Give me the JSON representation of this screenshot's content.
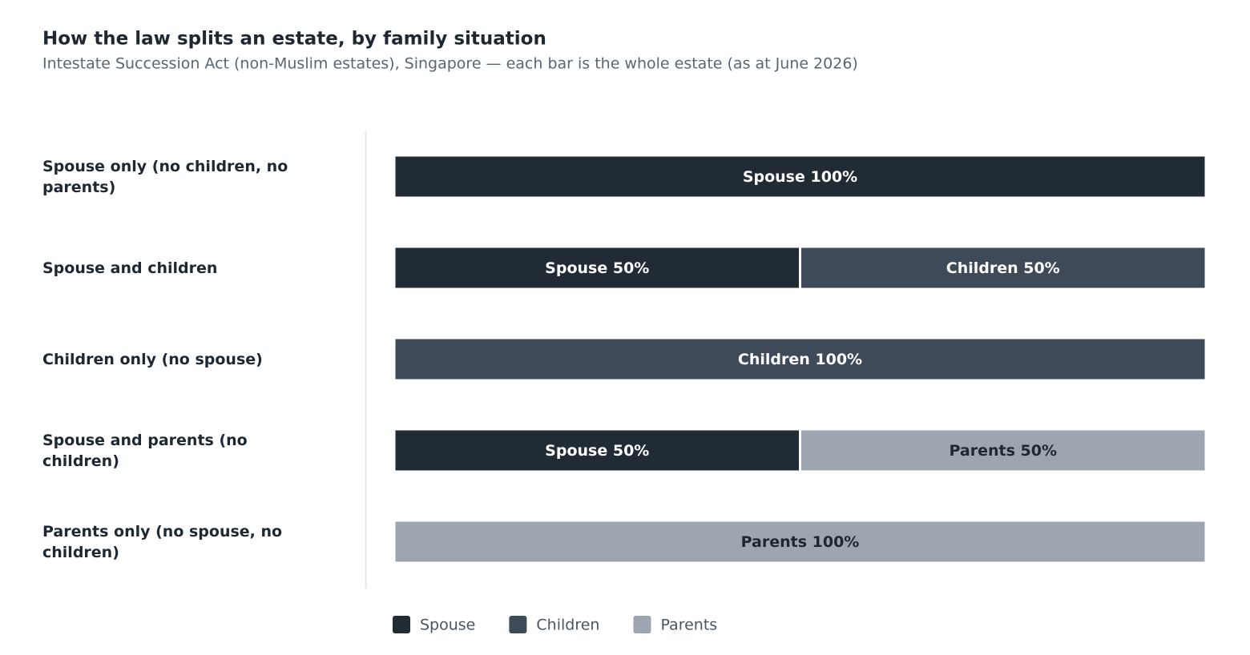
{
  "chart_data": {
    "type": "stacked-bar-horizontal",
    "title": "How the law splits an estate, by family situation",
    "subtitle": "Intestate Succession Act (non-Muslim estates), Singapore — each bar is the whole estate (as at June 2026)",
    "categories": [
      "Spouse only (no children, no parents)",
      "Spouse and children",
      "Children only (no spouse)",
      "Spouse and parents (no children)",
      "Parents only (no spouse, no children)"
    ],
    "series": [
      {
        "name": "Spouse",
        "color": "#212b35",
        "values": [
          100,
          50,
          null,
          50,
          null
        ],
        "value_labels": [
          "Spouse 100%",
          "Spouse 50%",
          null,
          "Spouse 50%",
          null
        ]
      },
      {
        "name": "Children",
        "color": "#3e4a57",
        "values": [
          null,
          50,
          100,
          null,
          null
        ],
        "value_labels": [
          null,
          "Children 50%",
          "Children 100%",
          null,
          null
        ]
      },
      {
        "name": "Parents",
        "color": "#9ca5b0",
        "values": [
          null,
          null,
          null,
          50,
          100
        ],
        "value_labels": [
          null,
          null,
          null,
          "Parents 50%",
          "Parents 100%"
        ]
      }
    ],
    "xlim": [
      0,
      100
    ],
    "legend": "bottom"
  }
}
